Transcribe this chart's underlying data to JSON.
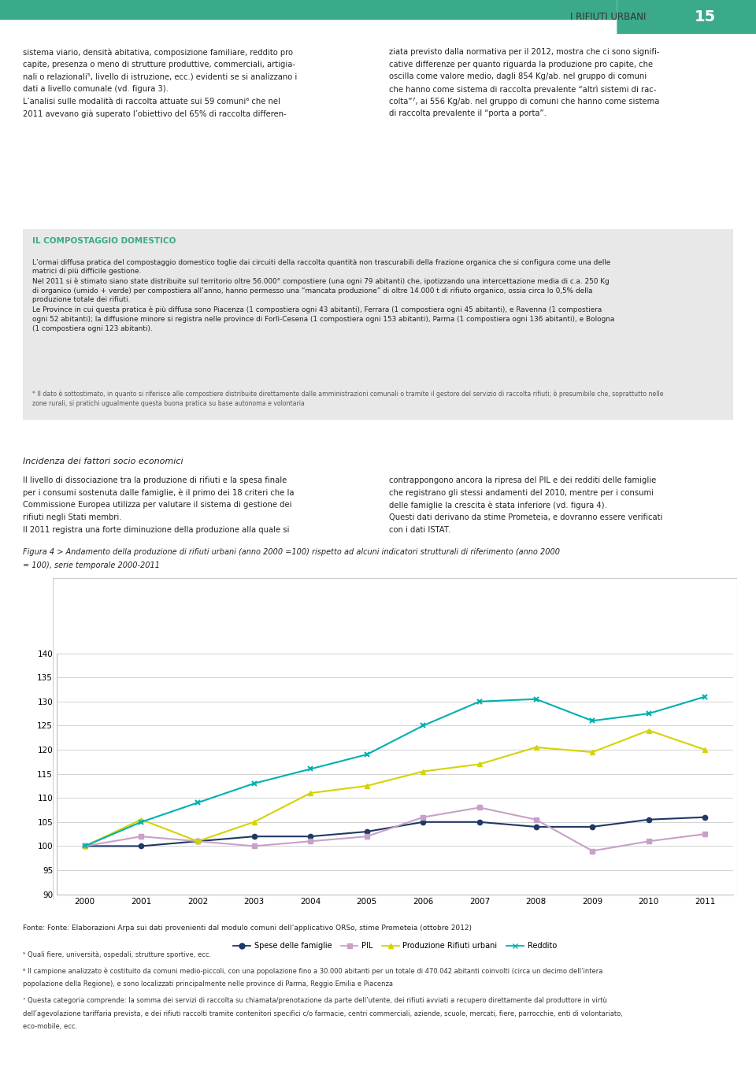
{
  "page_number": "15",
  "header_text": "I RIFIUTI URBANI",
  "header_bar_color": "#3aaa8a",
  "circle_color": "#3aaa8a",
  "figure_caption": "Figura 4 > Andamento della produzione di rifiuti urbani (anno 2000 =100) rispetto ad alcuni indicatori strutturali di riferimento (anno 2000\n= 100), serie temporale 2000-2011",
  "fonte_text": "Fonte: Fonte: Elaborazioni Arpa sui dati provenienti dal modulo comuni dell’applicativo ORSo, stime Prometeia (ottobre 2012)",
  "chart_years": [
    2000,
    2001,
    2002,
    2003,
    2004,
    2005,
    2006,
    2007,
    2008,
    2009,
    2010,
    2011
  ],
  "chart_ylim": [
    90,
    140
  ],
  "chart_yticks": [
    90,
    95,
    100,
    105,
    110,
    115,
    120,
    125,
    130,
    135,
    140
  ],
  "series_names": [
    "Spese delle famiglie",
    "PIL",
    "Produzione Rifiuti urbani",
    "Reddito"
  ],
  "series_colors": [
    "#1f3864",
    "#c8a0c8",
    "#d4d400",
    "#00b0b0"
  ],
  "series_markers": [
    "o",
    "s",
    "^",
    "x"
  ],
  "series_values": [
    [
      100,
      100,
      101,
      102,
      102,
      103,
      105,
      105,
      104,
      104,
      105.5,
      106
    ],
    [
      100,
      102,
      101,
      100,
      101,
      102,
      106,
      108,
      105.5,
      99,
      101,
      102.5
    ],
    [
      100,
      105.5,
      101,
      105,
      111,
      112.5,
      115.5,
      117,
      120.5,
      119.5,
      124,
      120
    ],
    [
      100,
      105,
      109,
      113,
      116,
      119,
      125,
      130,
      130.5,
      126,
      127.5,
      131
    ]
  ]
}
